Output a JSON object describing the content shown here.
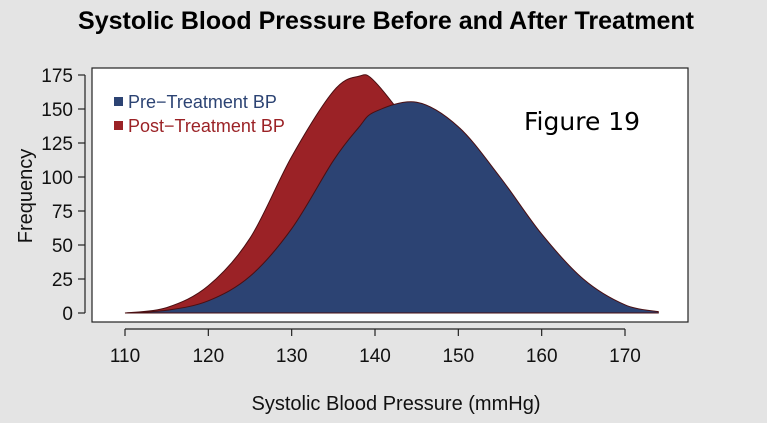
{
  "chart_data": {
    "type": "area",
    "title": "Systolic Blood Pressure Before and After Treatment",
    "xlabel": "Systolic Blood Pressure (mmHg)",
    "ylabel": "Frequency",
    "xlim": [
      110,
      175
    ],
    "ylim": [
      0,
      175
    ],
    "xticks": [
      110,
      120,
      130,
      140,
      150,
      160,
      170
    ],
    "yticks": [
      0,
      25,
      50,
      75,
      100,
      125,
      150,
      175
    ],
    "grid": false,
    "legend_position": "top-left",
    "annotation": "Figure 19",
    "x": [
      110,
      115,
      120,
      125,
      130,
      135,
      138,
      140,
      145,
      150,
      155,
      160,
      165,
      170,
      174
    ],
    "series": [
      {
        "name": "Post−Treatment BP",
        "color": "#9b2226",
        "values": [
          0,
          4,
          20,
          55,
          115,
          163,
          174,
          170,
          130,
          80,
          42,
          18,
          6,
          1,
          0
        ]
      },
      {
        "name": "Pre−Treatment BP",
        "color": "#2c4373",
        "values": [
          0,
          2,
          9,
          27,
          62,
          112,
          136,
          148,
          155,
          137,
          100,
          58,
          25,
          6,
          1
        ]
      }
    ]
  }
}
